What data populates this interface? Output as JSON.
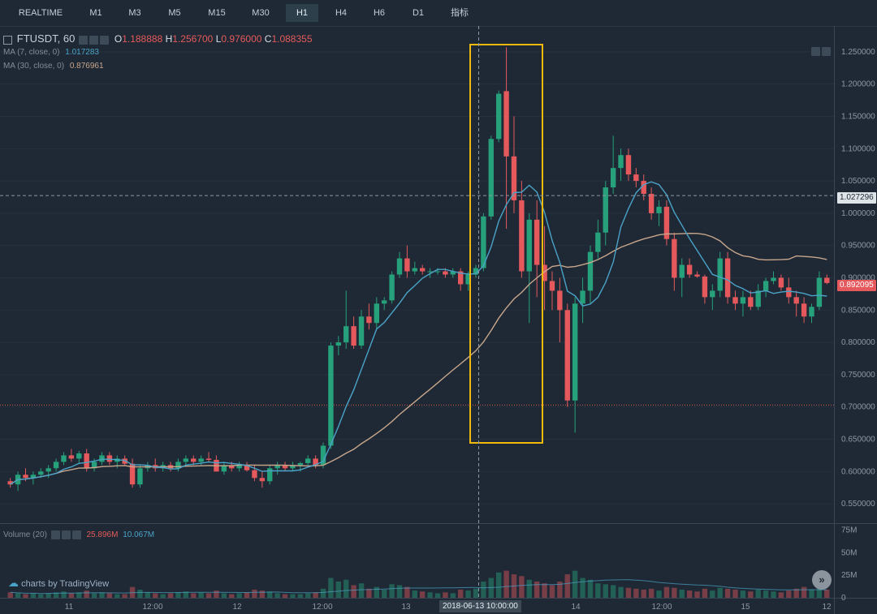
{
  "toolbar": {
    "tabs": [
      {
        "label": "REALTIME"
      },
      {
        "label": "M1"
      },
      {
        "label": "M3"
      },
      {
        "label": "M5"
      },
      {
        "label": "M15"
      },
      {
        "label": "M30"
      },
      {
        "label": "H1",
        "active": true
      },
      {
        "label": "H4"
      },
      {
        "label": "H6"
      },
      {
        "label": "D1"
      },
      {
        "label": "指标"
      }
    ]
  },
  "legend": {
    "symbol": "FTUSDT, 60",
    "open_label": "O",
    "open": "1.188888",
    "high_label": "H",
    "high": "1.256700",
    "low_label": "L",
    "low": "0.976000",
    "close_label": "C",
    "close": "1.088355",
    "ma7_label": "MA (7, close, 0)",
    "ma7_value": "1.017283",
    "ma30_label": "MA (30, close, 0)",
    "ma30_value": "0.876961"
  },
  "volume_legend": {
    "label": "Volume (20)",
    "value1": "25.896M",
    "value2": "10.067M"
  },
  "price_axis": {
    "labels": [
      "1.250000",
      "1.200000",
      "1.150000",
      "1.100000",
      "1.050000",
      "1.000000",
      "0.950000",
      "0.900000",
      "0.850000",
      "0.800000",
      "0.750000",
      "0.700000",
      "0.650000",
      "0.600000",
      "0.550000"
    ],
    "crosshair_price": "1.027296",
    "last_price": "0.892095"
  },
  "volume_axis": {
    "labels": [
      "75M",
      "50M",
      "25M",
      "0"
    ]
  },
  "time_axis": {
    "labels": [
      "11",
      "12:00",
      "12",
      "12:00",
      "13",
      "14",
      "12:00",
      "15",
      "12"
    ],
    "crosshair_time": "2018-06-13 10:00:00"
  },
  "branding": {
    "text": "charts by TradingView"
  },
  "colors": {
    "up": "#26a17b",
    "down": "#e5595d",
    "ma7": "#4aa3c8",
    "ma30": "#c7a68c",
    "highlight_box": "#f0b90b",
    "background": "#1f2935"
  },
  "chart_data": {
    "type": "candlestick",
    "title": "FTUSDT, 60",
    "y_range": [
      0.52,
      1.29
    ],
    "volume_range_M": [
      0,
      80
    ],
    "y_ticks": [
      1.25,
      1.2,
      1.15,
      1.1,
      1.05,
      1.0,
      0.95,
      0.9,
      0.85,
      0.8,
      0.75,
      0.7,
      0.65,
      0.6,
      0.55
    ],
    "horizontal_line_price": 0.703,
    "crosshair_price": 1.027296,
    "crosshair_time": "2018-06-13 10:00:00",
    "candles": [
      [
        0.585,
        0.59,
        0.575,
        0.58,
        6
      ],
      [
        0.58,
        0.6,
        0.57,
        0.595,
        5
      ],
      [
        0.595,
        0.605,
        0.585,
        0.59,
        4
      ],
      [
        0.59,
        0.6,
        0.58,
        0.595,
        5
      ],
      [
        0.595,
        0.605,
        0.59,
        0.6,
        4
      ],
      [
        0.6,
        0.61,
        0.59,
        0.605,
        5
      ],
      [
        0.605,
        0.62,
        0.6,
        0.615,
        6
      ],
      [
        0.615,
        0.63,
        0.61,
        0.625,
        7
      ],
      [
        0.625,
        0.635,
        0.615,
        0.62,
        5
      ],
      [
        0.62,
        0.632,
        0.612,
        0.628,
        6
      ],
      [
        0.628,
        0.635,
        0.6,
        0.605,
        8
      ],
      [
        0.605,
        0.62,
        0.6,
        0.615,
        5
      ],
      [
        0.615,
        0.63,
        0.61,
        0.625,
        6
      ],
      [
        0.625,
        0.63,
        0.61,
        0.615,
        5
      ],
      [
        0.615,
        0.625,
        0.605,
        0.62,
        4
      ],
      [
        0.62,
        0.625,
        0.61,
        0.612,
        4
      ],
      [
        0.612,
        0.62,
        0.575,
        0.58,
        12
      ],
      [
        0.58,
        0.61,
        0.575,
        0.605,
        9
      ],
      [
        0.605,
        0.615,
        0.6,
        0.61,
        6
      ],
      [
        0.61,
        0.62,
        0.6,
        0.605,
        5
      ],
      [
        0.605,
        0.615,
        0.6,
        0.61,
        4
      ],
      [
        0.61,
        0.615,
        0.6,
        0.605,
        5
      ],
      [
        0.605,
        0.62,
        0.6,
        0.615,
        6
      ],
      [
        0.615,
        0.625,
        0.61,
        0.62,
        7
      ],
      [
        0.62,
        0.625,
        0.61,
        0.615,
        5
      ],
      [
        0.615,
        0.625,
        0.61,
        0.62,
        6
      ],
      [
        0.62,
        0.63,
        0.615,
        0.618,
        5
      ],
      [
        0.618,
        0.625,
        0.6,
        0.6,
        8
      ],
      [
        0.6,
        0.615,
        0.595,
        0.61,
        5
      ],
      [
        0.61,
        0.615,
        0.6,
        0.605,
        4
      ],
      [
        0.605,
        0.615,
        0.6,
        0.61,
        5
      ],
      [
        0.61,
        0.615,
        0.6,
        0.602,
        6
      ],
      [
        0.602,
        0.61,
        0.585,
        0.59,
        9
      ],
      [
        0.59,
        0.6,
        0.575,
        0.585,
        8
      ],
      [
        0.585,
        0.61,
        0.58,
        0.605,
        7
      ],
      [
        0.605,
        0.615,
        0.595,
        0.61,
        5
      ],
      [
        0.61,
        0.615,
        0.6,
        0.605,
        4
      ],
      [
        0.605,
        0.615,
        0.6,
        0.61,
        4
      ],
      [
        0.61,
        0.615,
        0.6,
        0.613,
        4
      ],
      [
        0.613,
        0.625,
        0.61,
        0.62,
        5
      ],
      [
        0.62,
        0.625,
        0.605,
        0.61,
        6
      ],
      [
        0.61,
        0.645,
        0.605,
        0.64,
        10
      ],
      [
        0.64,
        0.8,
        0.635,
        0.795,
        22
      ],
      [
        0.795,
        0.81,
        0.78,
        0.8,
        18
      ],
      [
        0.8,
        0.88,
        0.79,
        0.825,
        20
      ],
      [
        0.825,
        0.84,
        0.79,
        0.795,
        14
      ],
      [
        0.795,
        0.85,
        0.79,
        0.84,
        16
      ],
      [
        0.84,
        0.86,
        0.82,
        0.83,
        10
      ],
      [
        0.83,
        0.87,
        0.82,
        0.86,
        12
      ],
      [
        0.86,
        0.87,
        0.85,
        0.865,
        9
      ],
      [
        0.865,
        0.91,
        0.86,
        0.905,
        15
      ],
      [
        0.905,
        0.94,
        0.9,
        0.93,
        14
      ],
      [
        0.93,
        0.95,
        0.9,
        0.91,
        12
      ],
      [
        0.91,
        0.925,
        0.905,
        0.915,
        8
      ],
      [
        0.915,
        0.92,
        0.905,
        0.91,
        7
      ],
      [
        0.91,
        0.915,
        0.9,
        0.91,
        6
      ],
      [
        0.91,
        0.915,
        0.905,
        0.91,
        5
      ],
      [
        0.91,
        0.915,
        0.9,
        0.905,
        6
      ],
      [
        0.905,
        0.915,
        0.9,
        0.91,
        5
      ],
      [
        0.91,
        0.915,
        0.88,
        0.89,
        9
      ],
      [
        0.89,
        0.91,
        0.88,
        0.905,
        8
      ],
      [
        0.905,
        0.92,
        0.9,
        0.915,
        10
      ],
      [
        0.915,
        1.0,
        0.91,
        0.995,
        18
      ],
      [
        0.995,
        1.12,
        0.99,
        1.115,
        22
      ],
      [
        1.115,
        1.19,
        1.11,
        1.185,
        28
      ],
      [
        1.189,
        1.257,
        0.976,
        1.088,
        30
      ],
      [
        1.088,
        1.15,
        1.0,
        1.02,
        26
      ],
      [
        1.02,
        1.05,
        0.9,
        0.91,
        24
      ],
      [
        0.91,
        1.0,
        0.83,
        0.99,
        20
      ],
      [
        0.99,
        1.02,
        0.87,
        0.92,
        18
      ],
      [
        0.92,
        0.98,
        0.85,
        0.895,
        16
      ],
      [
        0.895,
        0.91,
        0.85,
        0.88,
        14
      ],
      [
        0.88,
        0.9,
        0.8,
        0.85,
        18
      ],
      [
        0.85,
        0.86,
        0.7,
        0.71,
        26
      ],
      [
        0.71,
        0.87,
        0.66,
        0.86,
        30
      ],
      [
        0.86,
        0.9,
        0.83,
        0.88,
        22
      ],
      [
        0.88,
        0.95,
        0.86,
        0.94,
        20
      ],
      [
        0.94,
        0.99,
        0.93,
        0.97,
        16
      ],
      [
        0.97,
        1.05,
        0.95,
        1.04,
        15
      ],
      [
        1.04,
        1.12,
        1.03,
        1.07,
        14
      ],
      [
        1.07,
        1.1,
        1.05,
        1.09,
        12
      ],
      [
        1.09,
        1.1,
        1.05,
        1.06,
        11
      ],
      [
        1.06,
        1.07,
        1.04,
        1.05,
        10
      ],
      [
        1.05,
        1.06,
        1.02,
        1.03,
        9
      ],
      [
        1.03,
        1.04,
        0.99,
        1.0,
        10
      ],
      [
        1.0,
        1.02,
        0.98,
        1.01,
        8
      ],
      [
        1.01,
        1.02,
        0.95,
        0.96,
        12
      ],
      [
        0.96,
        0.97,
        0.88,
        0.9,
        11
      ],
      [
        0.9,
        0.93,
        0.87,
        0.92,
        9
      ],
      [
        0.92,
        0.93,
        0.9,
        0.905,
        8
      ],
      [
        0.905,
        0.91,
        0.9,
        0.902,
        7
      ],
      [
        0.902,
        0.905,
        0.86,
        0.87,
        10
      ],
      [
        0.87,
        0.89,
        0.85,
        0.88,
        8
      ],
      [
        0.88,
        0.94,
        0.87,
        0.93,
        11
      ],
      [
        0.93,
        0.94,
        0.86,
        0.87,
        10
      ],
      [
        0.87,
        0.88,
        0.85,
        0.86,
        9
      ],
      [
        0.86,
        0.88,
        0.84,
        0.87,
        8
      ],
      [
        0.87,
        0.88,
        0.85,
        0.855,
        7
      ],
      [
        0.855,
        0.89,
        0.85,
        0.88,
        9
      ],
      [
        0.88,
        0.9,
        0.87,
        0.895,
        8
      ],
      [
        0.895,
        0.91,
        0.89,
        0.9,
        7
      ],
      [
        0.9,
        0.905,
        0.88,
        0.885,
        6
      ],
      [
        0.885,
        0.9,
        0.86,
        0.87,
        8
      ],
      [
        0.87,
        0.88,
        0.84,
        0.86,
        10
      ],
      [
        0.86,
        0.87,
        0.83,
        0.84,
        12
      ],
      [
        0.84,
        0.86,
        0.83,
        0.855,
        9
      ],
      [
        0.855,
        0.91,
        0.85,
        0.9,
        11
      ],
      [
        0.9,
        0.905,
        0.89,
        0.892,
        9
      ]
    ]
  }
}
